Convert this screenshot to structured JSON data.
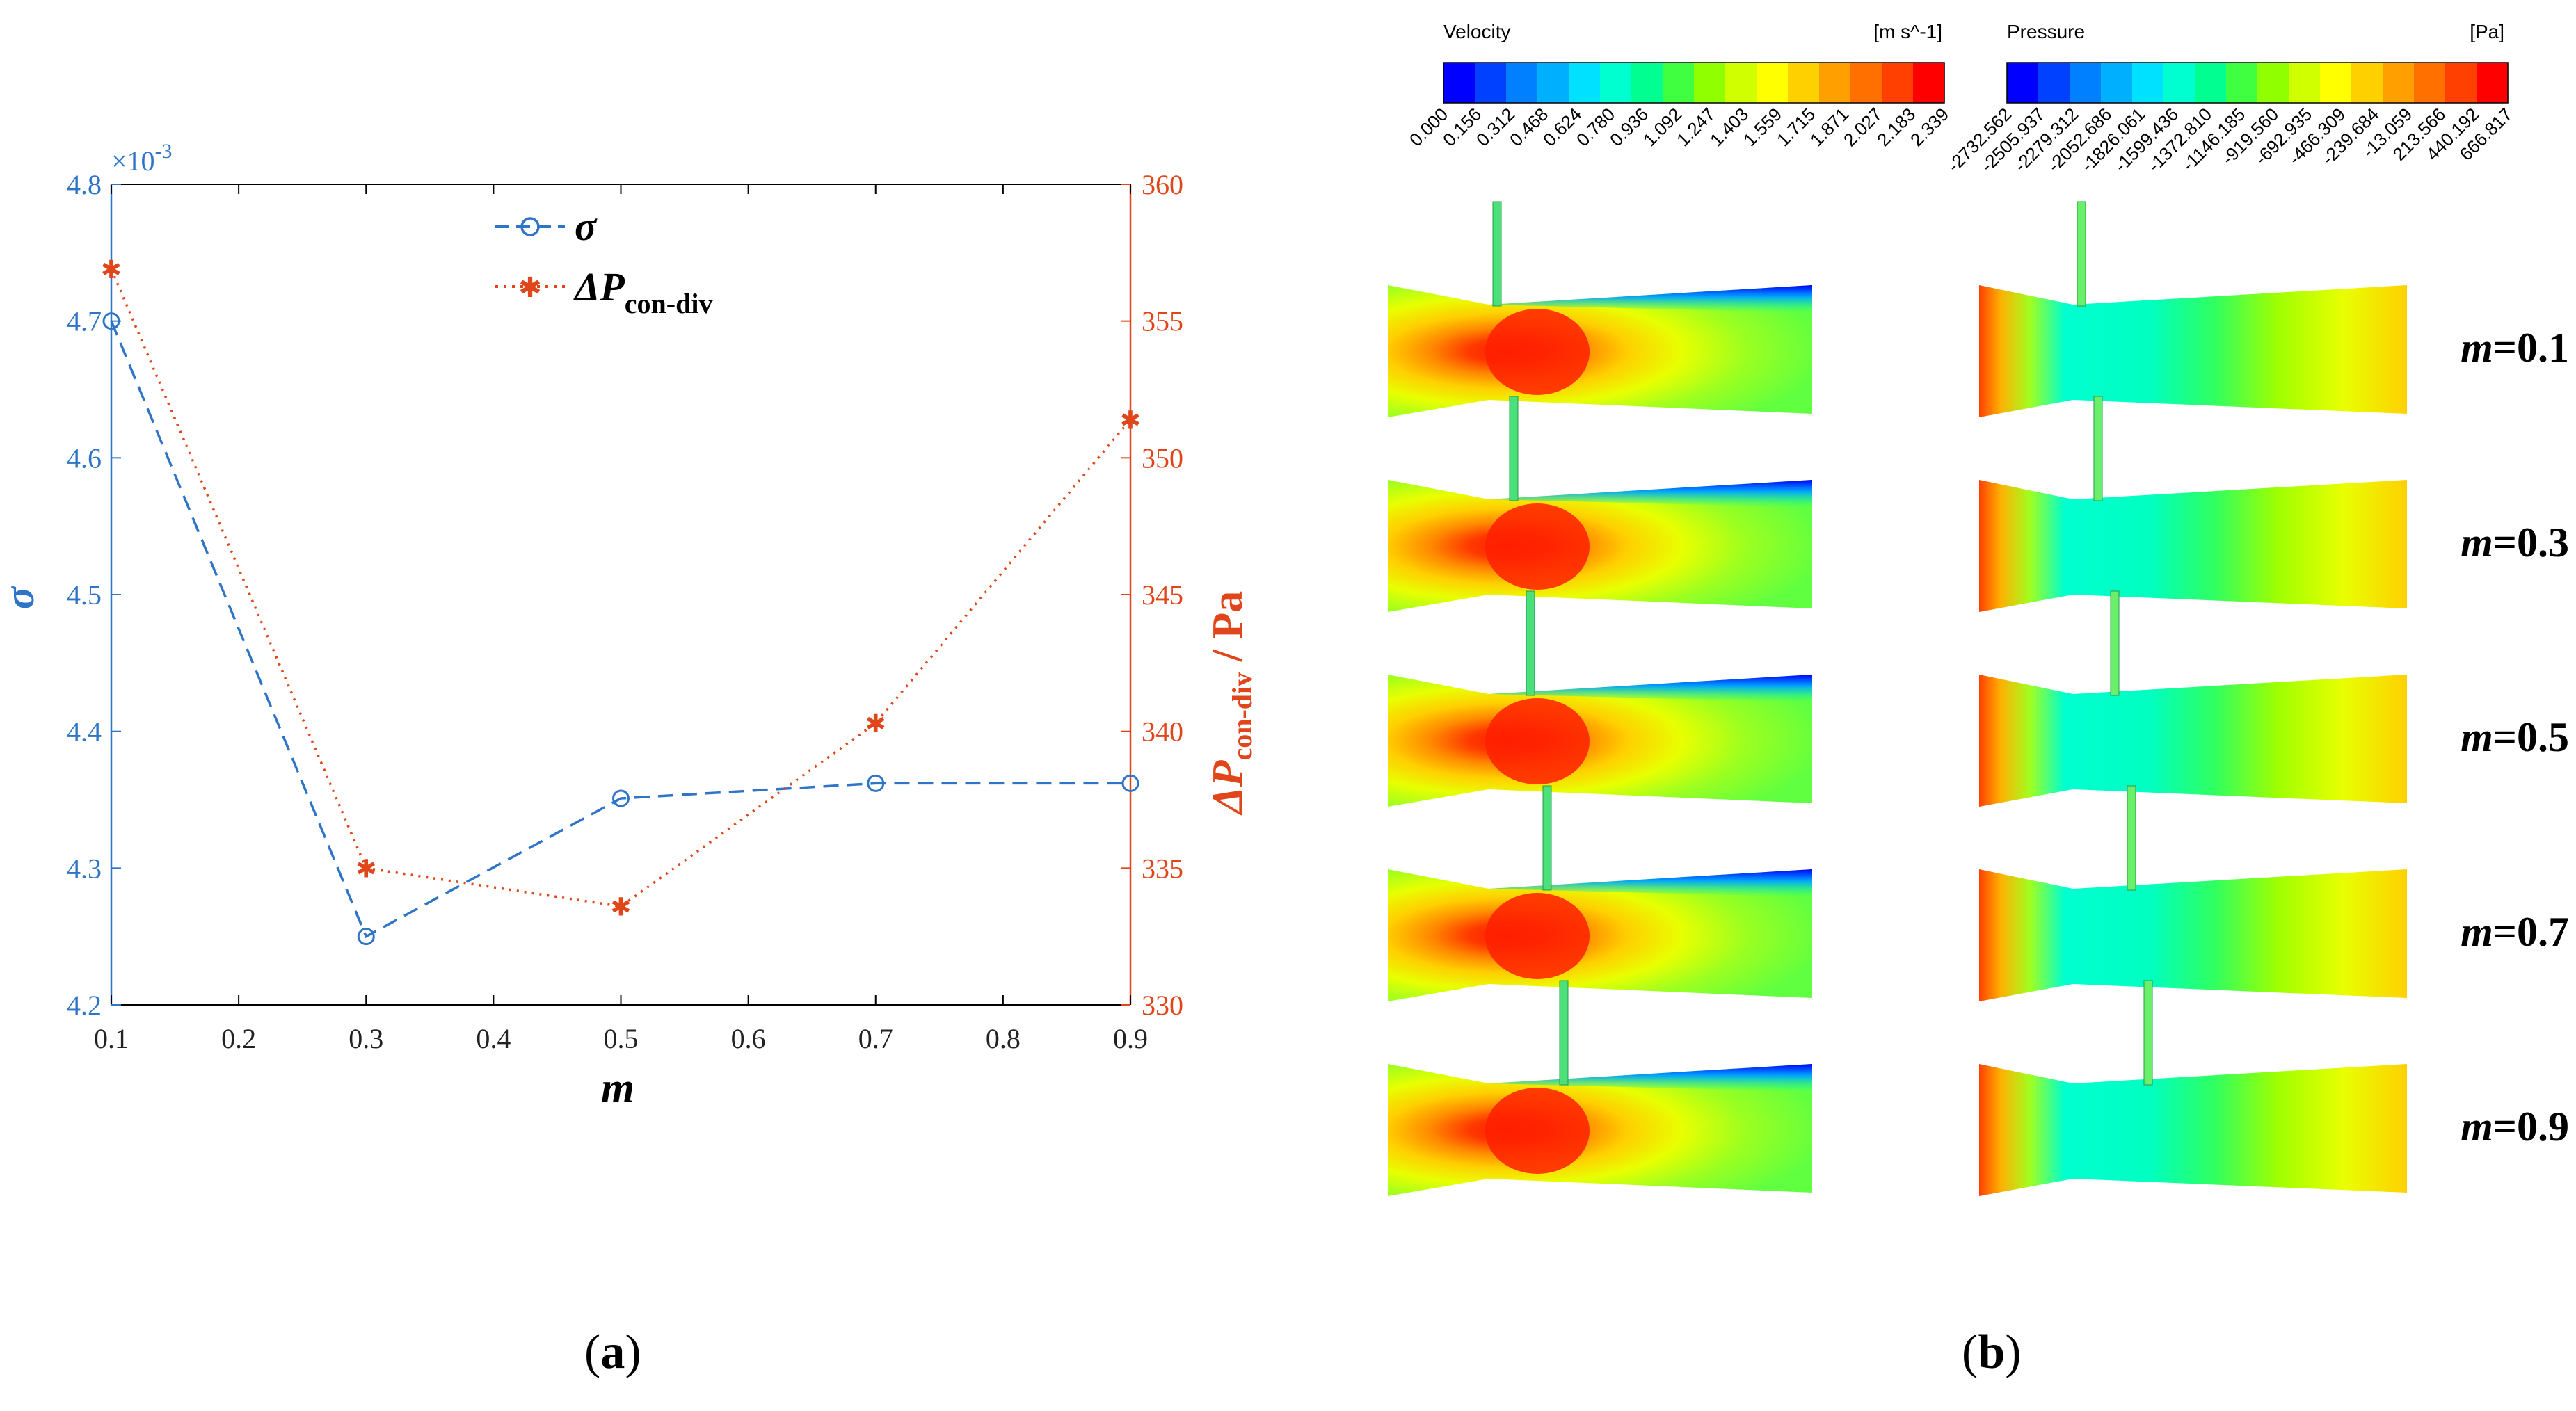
{
  "panel_a": {
    "caption_open": "(",
    "caption_letter": "a",
    "caption_close": ")"
  },
  "panel_b": {
    "caption_open": "(",
    "caption_letter": "b",
    "caption_close": ")",
    "velocity": {
      "title": "Velocity",
      "unit": "[m s^-1]",
      "ticks": [
        "0.000",
        "0.156",
        "0.312",
        "0.468",
        "0.624",
        "0.780",
        "0.936",
        "1.092",
        "1.247",
        "1.403",
        "1.559",
        "1.715",
        "1.871",
        "2.027",
        "2.183",
        "2.339"
      ]
    },
    "pressure": {
      "title": "Pressure",
      "unit": "[Pa]",
      "ticks": [
        "-2732.562",
        "-2505.937",
        "-2279.312",
        "-2052.686",
        "-1826.061",
        "-1599.436",
        "-1372.810",
        "-1146.185",
        "-919.560",
        "-692.935",
        "-466.309",
        "-239.684",
        "-13.059",
        "213.566",
        "440.192",
        "666.817"
      ]
    },
    "cases": [
      {
        "prefix": "m",
        "value": "=0.1"
      },
      {
        "prefix": "m",
        "value": "=0.3"
      },
      {
        "prefix": "m",
        "value": "=0.5"
      },
      {
        "prefix": "m",
        "value": "=0.7"
      },
      {
        "prefix": "m",
        "value": "=0.9"
      }
    ],
    "colormap": [
      "#0000ff",
      "#0040ff",
      "#0080ff",
      "#00b0ff",
      "#00e0ff",
      "#00ffd0",
      "#00ff90",
      "#40ff40",
      "#90ff00",
      "#d0ff00",
      "#ffff00",
      "#ffd000",
      "#ffa000",
      "#ff7000",
      "#ff4000",
      "#ff0000"
    ]
  },
  "chart_data": {
    "type": "line",
    "x": [
      0.1,
      0.3,
      0.5,
      0.7,
      0.9
    ],
    "xlabel": "m",
    "xlim": [
      0.1,
      0.9
    ],
    "xticks": [
      "0.1",
      "0.2",
      "0.3",
      "0.4",
      "0.5",
      "0.6",
      "0.7",
      "0.8",
      "0.9"
    ],
    "y_left": {
      "label": "σ",
      "ylim": [
        4.2,
        4.8
      ],
      "ticks": [
        "4.2",
        "4.3",
        "4.4",
        "4.5",
        "4.6",
        "4.7",
        "4.8"
      ],
      "exponent_base": "×10",
      "exponent": "-3",
      "color": "#2e75c8"
    },
    "y_right": {
      "label_delta": "ΔP",
      "label_sub": "con-div",
      "label_unit": " / Pa",
      "ylim": [
        330,
        360
      ],
      "ticks": [
        "330",
        "335",
        "340",
        "345",
        "350",
        "355",
        "360"
      ],
      "color": "#e0461a"
    },
    "series": [
      {
        "name": "σ",
        "axis": "left",
        "style": "dashed",
        "marker": "circle",
        "color": "#2e75c8",
        "values": [
          4.7,
          4.25,
          4.351,
          4.362,
          4.362
        ]
      },
      {
        "name_delta": "ΔP",
        "name_sub": "con-div",
        "axis": "right",
        "style": "dotted",
        "marker": "asterisk",
        "color": "#e0461a",
        "values": [
          356.9,
          335.0,
          333.6,
          340.3,
          351.4
        ]
      }
    ],
    "legend": "top-center"
  }
}
